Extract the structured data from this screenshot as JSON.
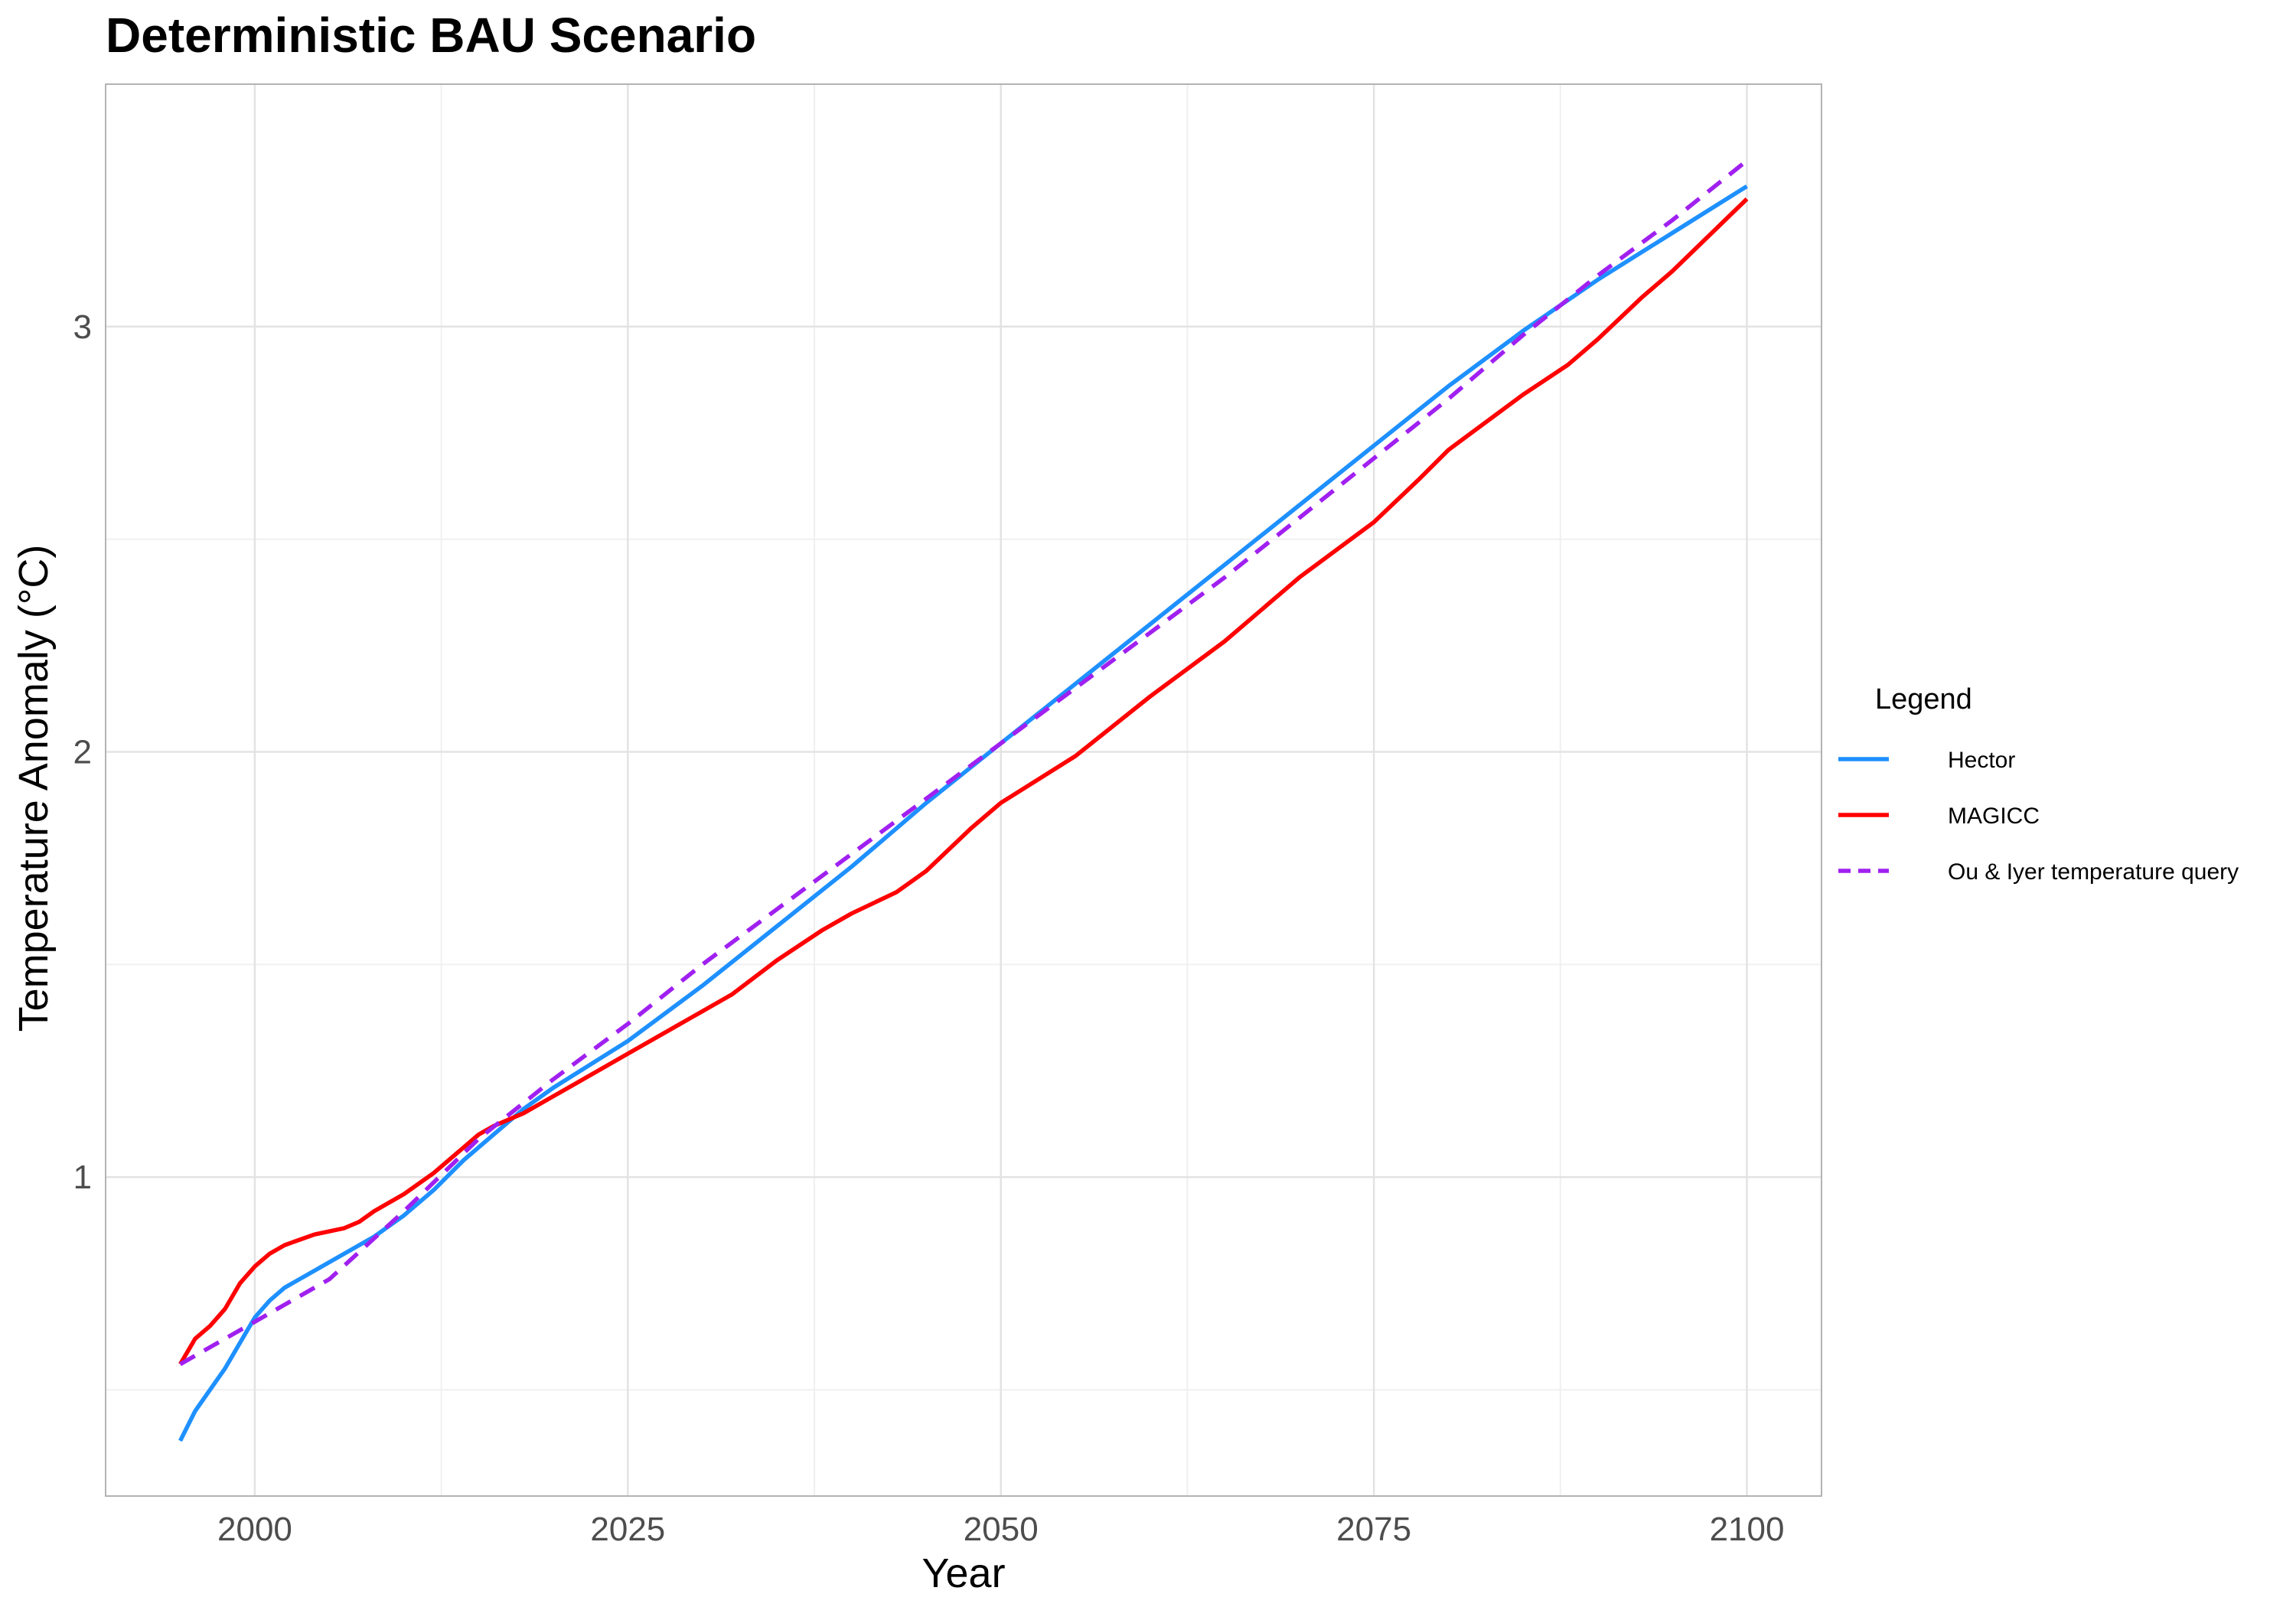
{
  "chart_data": {
    "type": "line",
    "title": "Deterministic BAU Scenario",
    "xlabel": "Year",
    "ylabel": "Temperature Anomaly (°C)",
    "xlim": [
      1990,
      2105
    ],
    "ylim": [
      0.25,
      3.57
    ],
    "xticks": [
      2000,
      2025,
      2050,
      2075,
      2100
    ],
    "xticks_minor": [
      2012.5,
      2037.5,
      2062.5,
      2087.5
    ],
    "yticks": [
      1,
      2,
      3
    ],
    "yticks_minor": [
      0.5,
      1.5,
      2.5
    ],
    "grid": true,
    "legend": {
      "title": "Legend",
      "position": "right"
    },
    "series": [
      {
        "name": "Hector",
        "color": "#1E90FF",
        "dash": "solid",
        "x": [
          1995,
          1996,
          1997,
          1998,
          1999,
          2000,
          2001,
          2002,
          2004,
          2006,
          2008,
          2010,
          2012,
          2014,
          2016,
          2018,
          2020,
          2025,
          2030,
          2035,
          2040,
          2045,
          2050,
          2055,
          2060,
          2065,
          2070,
          2075,
          2080,
          2085,
          2090,
          2095,
          2100
        ],
        "y": [
          0.38,
          0.45,
          0.5,
          0.55,
          0.61,
          0.67,
          0.71,
          0.74,
          0.78,
          0.82,
          0.86,
          0.91,
          0.97,
          1.04,
          1.1,
          1.16,
          1.21,
          1.32,
          1.45,
          1.59,
          1.73,
          1.88,
          2.02,
          2.16,
          2.3,
          2.44,
          2.58,
          2.72,
          2.86,
          2.99,
          3.11,
          3.22,
          3.33
        ]
      },
      {
        "name": "MAGICC",
        "color": "#FF0000",
        "dash": "solid",
        "x": [
          1995,
          1996,
          1997,
          1998,
          1999,
          2000,
          2001,
          2002,
          2004,
          2006,
          2007,
          2008,
          2010,
          2012,
          2013,
          2014,
          2015,
          2016,
          2018,
          2020,
          2022,
          2025,
          2030,
          2032,
          2035,
          2038,
          2040,
          2043,
          2045,
          2048,
          2050,
          2055,
          2060,
          2065,
          2070,
          2075,
          2078,
          2080,
          2085,
          2088,
          2090,
          2093,
          2095,
          2100
        ],
        "y": [
          0.56,
          0.62,
          0.65,
          0.69,
          0.75,
          0.79,
          0.82,
          0.84,
          0.865,
          0.88,
          0.895,
          0.92,
          0.96,
          1.01,
          1.04,
          1.07,
          1.1,
          1.12,
          1.15,
          1.19,
          1.23,
          1.29,
          1.39,
          1.43,
          1.51,
          1.58,
          1.62,
          1.67,
          1.72,
          1.82,
          1.88,
          1.99,
          2.13,
          2.26,
          2.41,
          2.54,
          2.64,
          2.71,
          2.84,
          2.91,
          2.97,
          3.07,
          3.13,
          3.3
        ]
      },
      {
        "name": "Ou & Iyer temperature query",
        "color": "#A020F0",
        "dash": "dashed",
        "x": [
          1995,
          2000,
          2005,
          2010,
          2015,
          2020,
          2025,
          2030,
          2035,
          2040,
          2045,
          2050,
          2055,
          2060,
          2065,
          2070,
          2075,
          2080,
          2085,
          2090,
          2095,
          2100
        ],
        "y": [
          0.56,
          0.66,
          0.76,
          0.92,
          1.09,
          1.23,
          1.36,
          1.5,
          1.63,
          1.76,
          1.89,
          2.02,
          2.15,
          2.28,
          2.41,
          2.55,
          2.69,
          2.83,
          2.98,
          3.12,
          3.25,
          3.39
        ]
      }
    ]
  }
}
